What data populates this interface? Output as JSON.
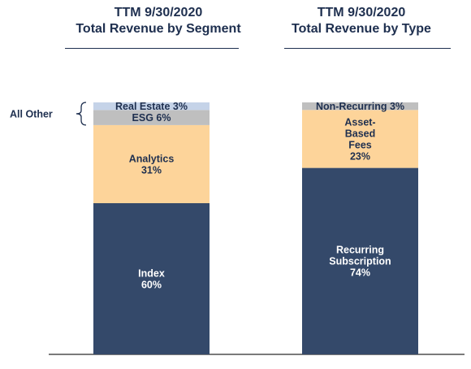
{
  "colors": {
    "index": "#34496a",
    "analytics": "#fdd49a",
    "esg": "#bfbfbf",
    "real_estate": "#c5d3e8",
    "recurring": "#34496a",
    "asset_based": "#fdd49a",
    "non_recurring": "#bfbfbf",
    "title_text": "#1e2f4f",
    "dark_label": "#ffffff",
    "light_label": "#1e2f4f"
  },
  "chart_data": [
    {
      "type": "bar",
      "stacked": true,
      "title_line1": "TTM 9/30/2020",
      "title_line2": "Total Revenue by Segment",
      "unit": "%",
      "segments": [
        {
          "name": "Index",
          "value": 60,
          "label_lines": [
            "Index",
            "60%"
          ],
          "color_key": "index"
        },
        {
          "name": "Analytics",
          "value": 31,
          "label_lines": [
            "Analytics",
            "31%"
          ],
          "color_key": "analytics"
        },
        {
          "name": "ESG",
          "value": 6,
          "label_lines": [
            "ESG 6%"
          ],
          "color_key": "esg"
        },
        {
          "name": "Real Estate",
          "value": 3,
          "label_lines": [
            "Real Estate 3%"
          ],
          "color_key": "real_estate"
        }
      ],
      "annotation": {
        "text": "All Other",
        "covers": [
          "ESG",
          "Real Estate"
        ]
      }
    },
    {
      "type": "bar",
      "stacked": true,
      "title_line1": "TTM 9/30/2020",
      "title_line2": "Total Revenue by Type",
      "unit": "%",
      "segments": [
        {
          "name": "Recurring Subscription",
          "value": 74,
          "label_lines": [
            "Recurring",
            "Subscription",
            "74%"
          ],
          "color_key": "recurring"
        },
        {
          "name": "Asset-Based Fees",
          "value": 23,
          "label_lines": [
            "Asset-",
            "Based",
            "Fees",
            "23%"
          ],
          "color_key": "asset_based"
        },
        {
          "name": "Non-Recurring",
          "value": 3,
          "label_lines": [
            "Non-Recurring 3%"
          ],
          "color_key": "non_recurring"
        }
      ]
    }
  ]
}
